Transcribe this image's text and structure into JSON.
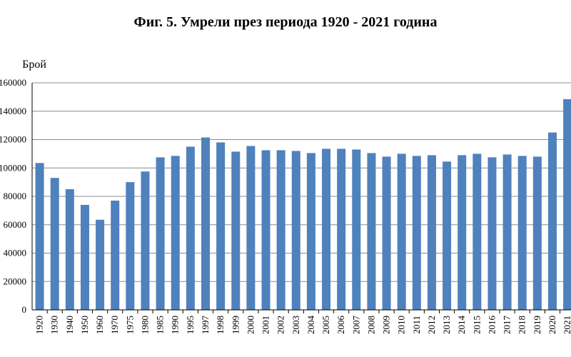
{
  "chart_data": {
    "type": "bar",
    "title": "Фиг. 5. Умрели през периода 1920 - 2021 година",
    "xlabel": "",
    "ylabel": "Брой",
    "ylim": [
      0,
      160000
    ],
    "yticks": [
      0,
      20000,
      40000,
      60000,
      80000,
      100000,
      120000,
      140000,
      160000
    ],
    "ytick_labels": [
      "0",
      "20000",
      "40000",
      "60000",
      "80000",
      "100000",
      "120000",
      "140000",
      "160000"
    ],
    "grid": true,
    "legend": "none",
    "bar_color": "#4f81bd",
    "categories": [
      "1920",
      "1930",
      "1940",
      "1950",
      "1960",
      "1970",
      "1975",
      "1980",
      "1985",
      "1990",
      "1995",
      "1997",
      "1998",
      "1999",
      "2000",
      "2001",
      "2002",
      "2003",
      "2004",
      "2005",
      "2006",
      "2007",
      "2008",
      "2009",
      "2010",
      "2011",
      "2012",
      "2013",
      "2014",
      "2015",
      "2016",
      "2017",
      "2018",
      "2019",
      "2020",
      "2021"
    ],
    "values": [
      103500,
      93000,
      85000,
      74000,
      63500,
      77000,
      90000,
      97500,
      107500,
      108500,
      115000,
      121500,
      118000,
      111500,
      115500,
      112500,
      112500,
      112000,
      110500,
      113500,
      113500,
      113000,
      110500,
      108000,
      110000,
      108500,
      109000,
      104500,
      109000,
      110000,
      107500,
      109500,
      108500,
      108000,
      125000,
      148500
    ]
  }
}
